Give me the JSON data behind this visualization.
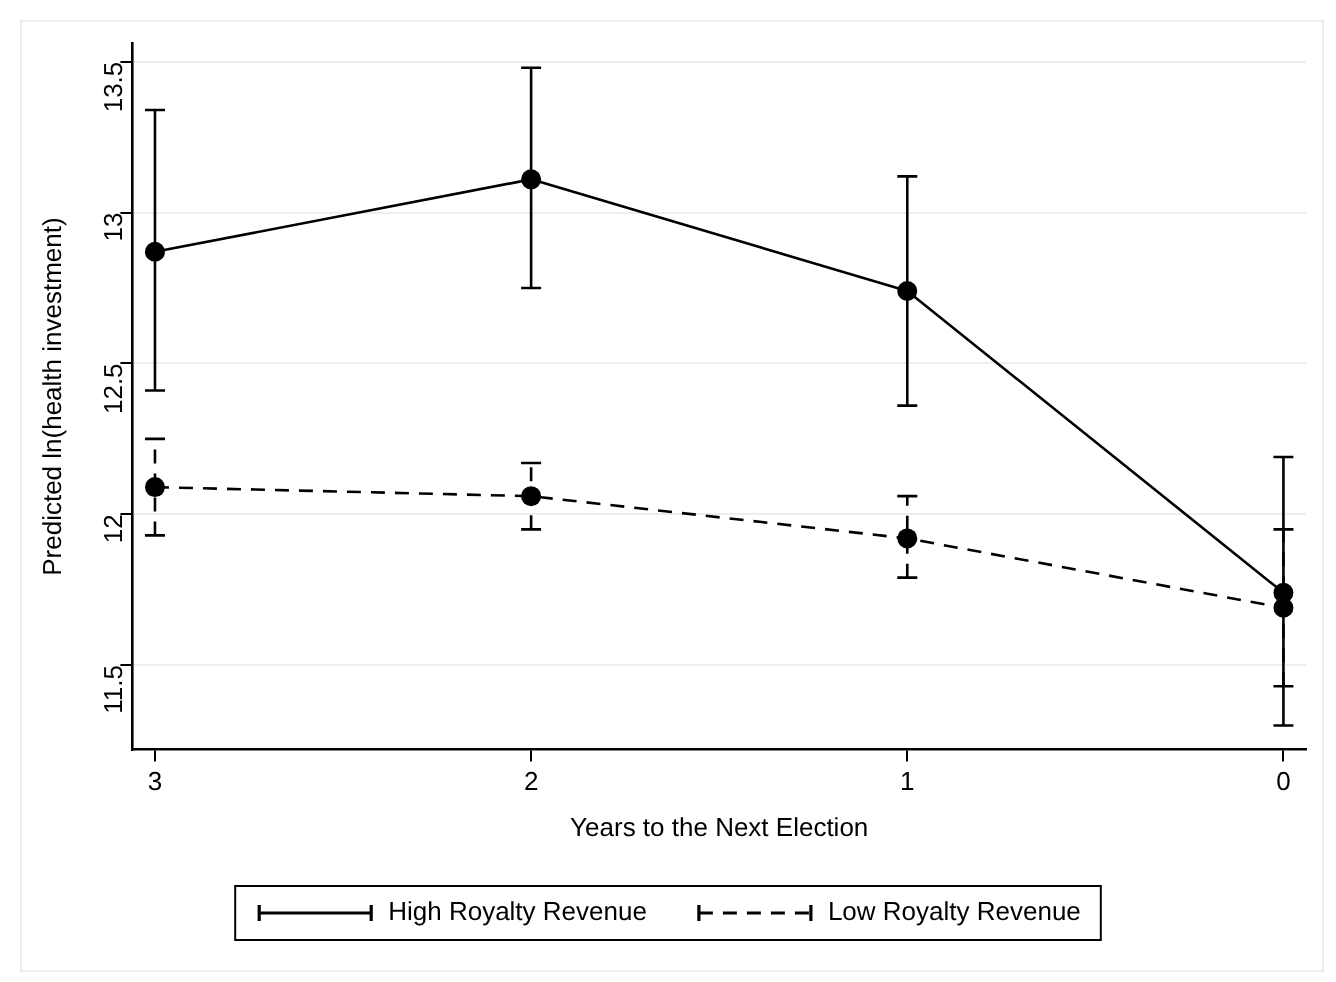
{
  "chart_data": {
    "type": "line",
    "xlabel": "Years to the Next Election",
    "ylabel": "Predicted ln(health investment)",
    "x": [
      3,
      2,
      1,
      0
    ],
    "xlim": [
      3.06,
      -0.06
    ],
    "xticks": [
      3,
      2,
      1,
      0
    ],
    "ylim": [
      11.22,
      13.56
    ],
    "yticks": [
      11.5,
      12,
      12.5,
      13,
      13.5
    ],
    "grid": "y",
    "legend": "bottom",
    "marker": "circle",
    "series": [
      {
        "name": "High Royalty Revenue",
        "color": "#000000",
        "line_style": "solid",
        "values": [
          12.87,
          13.11,
          12.74,
          11.74
        ],
        "errors": [
          [
            12.41,
            13.34
          ],
          [
            12.75,
            13.48
          ],
          [
            12.36,
            13.12
          ],
          [
            11.3,
            12.19
          ]
        ]
      },
      {
        "name": "Low Royalty Revenue",
        "color": "#000000",
        "line_style": "dashed",
        "values": [
          12.09,
          12.06,
          11.92,
          11.69
        ],
        "errors": [
          [
            11.93,
            12.25
          ],
          [
            11.95,
            12.17
          ],
          [
            11.79,
            12.06
          ],
          [
            11.43,
            11.95
          ]
        ]
      }
    ]
  }
}
